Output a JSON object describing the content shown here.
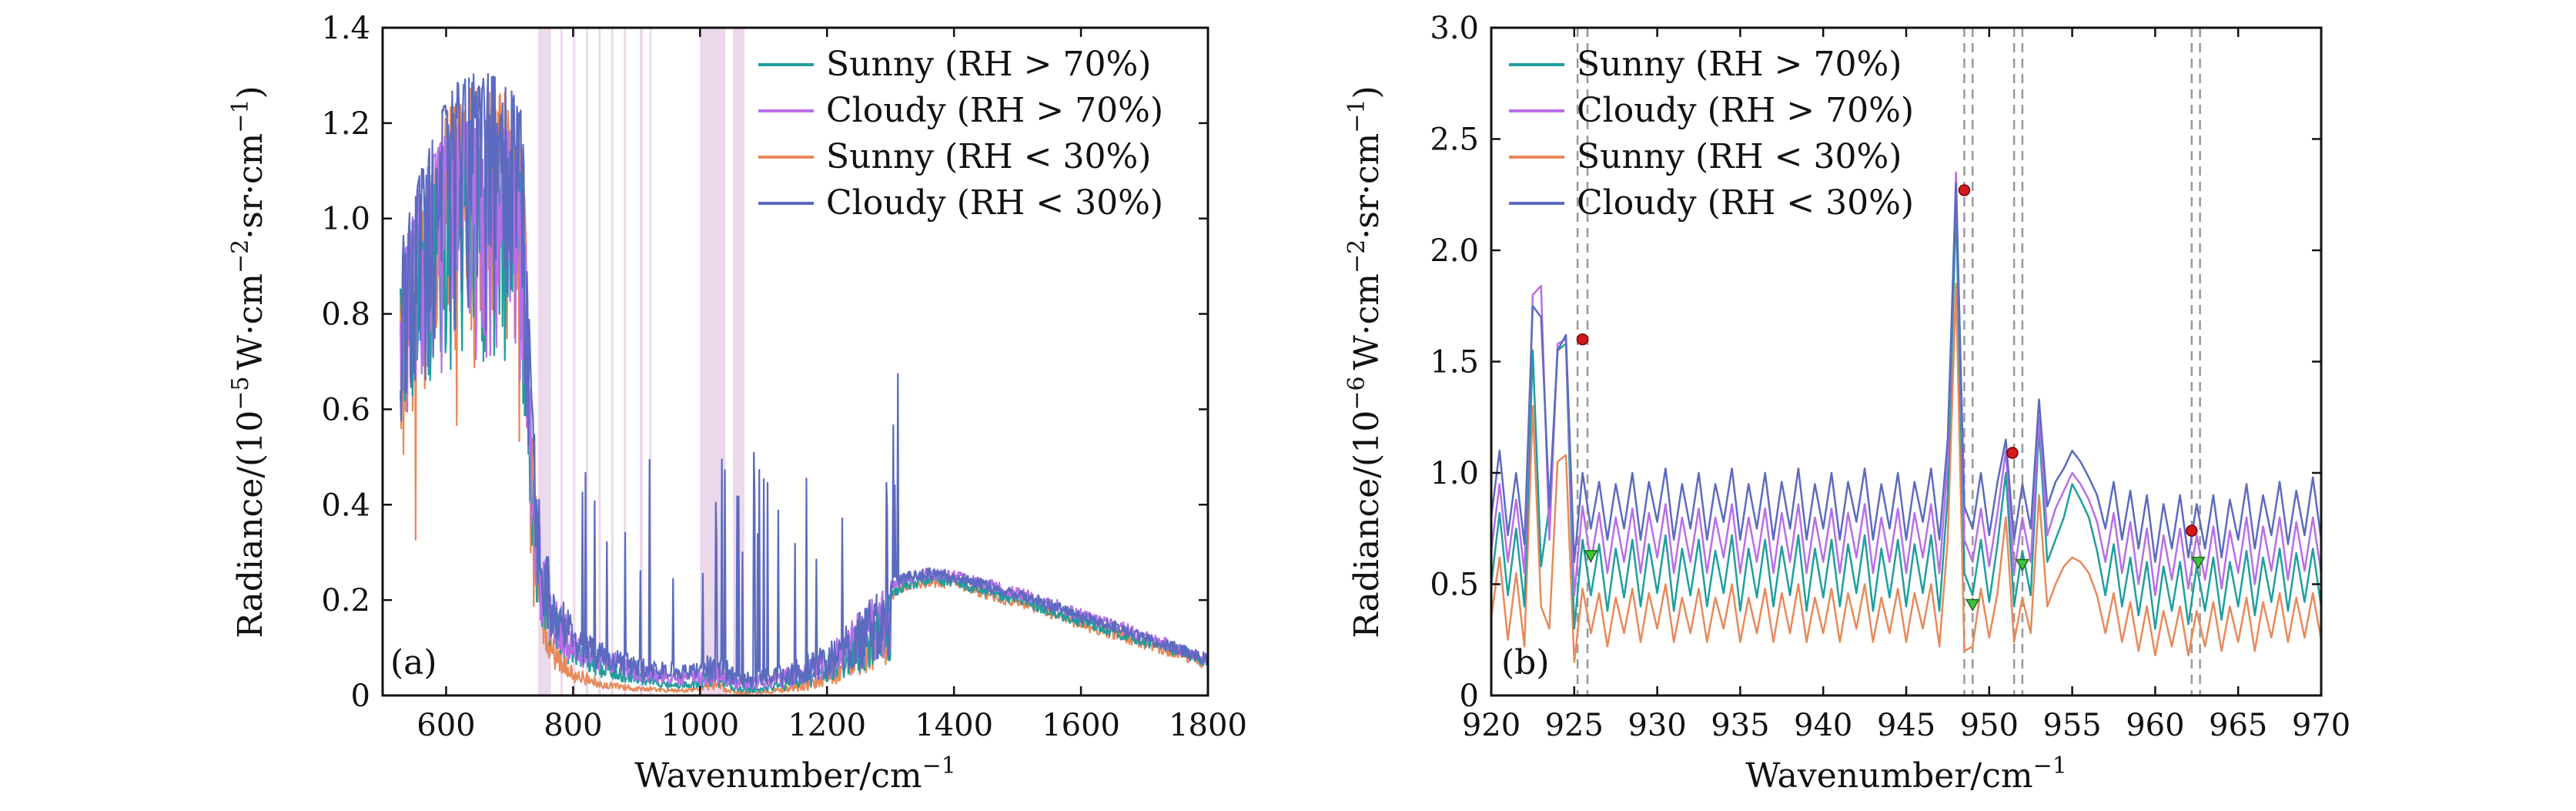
{
  "colors": {
    "sunny_wet": "#1f9e9e",
    "cloudy_wet": "#b86ee8",
    "sunny_dry": "#e8895a",
    "cloudy_dry": "#5b6bbf",
    "band": "#e6cce6",
    "peak_marker": "#d11a1a",
    "trough_marker": "#3fc23f",
    "dashed_line": "#999999"
  },
  "chart_data": [
    {
      "type": "line",
      "panel_label": "(a)",
      "xlabel": "Wavenumber/cm",
      "xlabel_sup": "−1",
      "ylabel": "Radiance/(10",
      "ylabel_sup": "−5",
      "ylabel_units": "W·cm",
      "ylabel_units_sup": "−2",
      "ylabel_units_tail": "·sr·cm",
      "ylabel_units_tail_sup": "−1",
      "ylabel_close": ")",
      "xlim": [
        500,
        1800
      ],
      "ylim": [
        0,
        1.4
      ],
      "x_ticks": [
        600,
        800,
        1000,
        1200,
        1400,
        1600,
        1800
      ],
      "x_tick_labels": [
        "600",
        "800",
        "1000",
        "1200",
        "1400",
        "1600",
        "1800"
      ],
      "y_ticks": [
        0,
        0.2,
        0.4,
        0.6,
        0.8,
        1.0,
        1.2,
        1.4
      ],
      "y_tick_labels": [
        "0",
        "0.2",
        "0.4",
        "0.6",
        "0.8",
        "1.0",
        "1.2",
        "1.4"
      ],
      "legend": [
        "Sunny (RH > 70%)",
        "Cloudy (RH > 70%)",
        "Sunny (RH < 30%)",
        "Cloudy (RH < 30%)"
      ],
      "legend_position": "top-right",
      "shaded_bands": [
        [
          745,
          765
        ],
        [
          780,
          783
        ],
        [
          800,
          803
        ],
        [
          820,
          823
        ],
        [
          840,
          843
        ],
        [
          860,
          863
        ],
        [
          880,
          883
        ],
        [
          905,
          910
        ],
        [
          920,
          923
        ],
        [
          1000,
          1040
        ],
        [
          1052,
          1070
        ]
      ],
      "envelope": {
        "x": [
          530,
          560,
          600,
          620,
          650,
          680,
          700,
          720,
          735,
          750,
          770,
          800,
          850,
          900,
          950,
          980,
          1000,
          1020,
          1040,
          1060,
          1080,
          1120,
          1160,
          1200,
          1240,
          1280,
          1320,
          1360,
          1400,
          1450,
          1500,
          1550,
          1600,
          1650,
          1700,
          1750,
          1800
        ],
        "sunny_wet": [
          0.9,
          1.05,
          1.15,
          1.17,
          1.18,
          1.17,
          1.15,
          1.1,
          0.55,
          0.3,
          0.2,
          0.12,
          0.08,
          0.05,
          0.03,
          0.03,
          0.04,
          0.06,
          0.04,
          0.02,
          0.02,
          0.03,
          0.05,
          0.08,
          0.14,
          0.2,
          0.23,
          0.245,
          0.24,
          0.22,
          0.2,
          0.18,
          0.155,
          0.135,
          0.115,
          0.095,
          0.07
        ],
        "cloudy_wet": [
          0.92,
          1.08,
          1.18,
          1.2,
          1.21,
          1.2,
          1.18,
          1.12,
          0.58,
          0.33,
          0.22,
          0.14,
          0.1,
          0.07,
          0.05,
          0.05,
          0.06,
          0.08,
          0.06,
          0.04,
          0.04,
          0.05,
          0.07,
          0.1,
          0.16,
          0.22,
          0.245,
          0.255,
          0.25,
          0.235,
          0.215,
          0.195,
          0.17,
          0.15,
          0.125,
          0.1,
          0.075
        ],
        "sunny_dry": [
          0.85,
          1.0,
          1.22,
          1.26,
          1.28,
          1.27,
          1.26,
          1.2,
          0.55,
          0.25,
          0.12,
          0.06,
          0.03,
          0.02,
          0.015,
          0.015,
          0.02,
          0.04,
          0.02,
          0.01,
          0.01,
          0.015,
          0.03,
          0.06,
          0.12,
          0.19,
          0.225,
          0.24,
          0.235,
          0.215,
          0.195,
          0.175,
          0.15,
          0.13,
          0.11,
          0.09,
          0.065
        ],
        "cloudy_dry": [
          0.95,
          1.1,
          1.25,
          1.29,
          1.31,
          1.3,
          1.28,
          1.22,
          0.62,
          0.36,
          0.25,
          0.16,
          0.11,
          0.08,
          0.07,
          0.07,
          0.08,
          0.1,
          0.08,
          0.05,
          0.05,
          0.06,
          0.08,
          0.11,
          0.16,
          0.22,
          0.245,
          0.255,
          0.25,
          0.23,
          0.21,
          0.19,
          0.165,
          0.145,
          0.12,
          0.1,
          0.075
        ]
      }
    },
    {
      "type": "line",
      "panel_label": "(b)",
      "xlabel": "Wavenumber/cm",
      "xlabel_sup": "−1",
      "ylabel": "Radiance/(10",
      "ylabel_sup": "−6",
      "ylabel_units": "W·cm",
      "ylabel_units_sup": "−2",
      "ylabel_units_tail": "·sr·cm",
      "ylabel_units_tail_sup": "−1",
      "ylabel_close": ")",
      "xlim": [
        920,
        970
      ],
      "ylim": [
        0,
        3.0
      ],
      "x_ticks": [
        920,
        925,
        930,
        935,
        940,
        945,
        950,
        955,
        960,
        965,
        970
      ],
      "x_tick_labels": [
        "920",
        "925",
        "930",
        "935",
        "940",
        "945",
        "950",
        "955",
        "960",
        "965",
        "970"
      ],
      "y_ticks": [
        0,
        0.5,
        1.0,
        1.5,
        2.0,
        2.5,
        3.0
      ],
      "y_tick_labels": [
        "0",
        "0.5",
        "1.0",
        "1.5",
        "2.0",
        "2.5",
        "3.0"
      ],
      "legend": [
        "Sunny (RH > 70%)",
        "Cloudy (RH > 70%)",
        "Sunny (RH < 30%)",
        "Cloudy (RH < 30%)"
      ],
      "legend_position": "top-left",
      "dashed_lines": [
        925.2,
        925.8,
        948.5,
        949.0,
        951.5,
        952.0,
        962.2,
        962.7
      ],
      "peak_markers": [
        [
          925.5,
          1.6
        ],
        [
          948.5,
          2.27
        ],
        [
          951.4,
          1.09
        ],
        [
          962.2,
          0.74
        ]
      ],
      "trough_markers": [
        [
          926.0,
          0.63
        ],
        [
          949.0,
          0.41
        ],
        [
          952.0,
          0.59
        ],
        [
          962.6,
          0.6
        ]
      ],
      "step": 0.5,
      "x_start": 920,
      "series": [
        {
          "name": "Sunny (RH > 70%)",
          "key": "sunny_wet",
          "values": [
            0.5,
            0.82,
            0.45,
            0.75,
            0.4,
            1.55,
            0.58,
            0.85,
            1.55,
            1.58,
            0.3,
            0.7,
            0.45,
            0.68,
            0.38,
            0.66,
            0.44,
            0.7,
            0.4,
            0.68,
            0.46,
            0.72,
            0.38,
            0.66,
            0.45,
            0.7,
            0.4,
            0.65,
            0.46,
            0.72,
            0.38,
            0.66,
            0.44,
            0.7,
            0.4,
            0.67,
            0.45,
            0.72,
            0.38,
            0.66,
            0.44,
            0.7,
            0.4,
            0.68,
            0.46,
            0.72,
            0.38,
            0.66,
            0.44,
            0.7,
            0.4,
            0.68,
            0.46,
            0.72,
            0.38,
            0.9,
            2.2,
            0.55,
            0.45,
            0.7,
            0.42,
            0.68,
            1.0,
            0.4,
            0.65,
            0.45,
            1.2,
            0.6,
            0.7,
            0.8,
            0.95,
            0.88,
            0.8,
            0.65,
            0.45,
            0.68,
            0.4,
            0.62,
            0.36,
            0.6,
            0.3,
            0.58,
            0.38,
            0.6,
            0.32,
            0.58,
            0.38,
            0.62,
            0.34,
            0.6,
            0.4,
            0.65,
            0.36,
            0.62,
            0.42,
            0.66,
            0.38,
            0.64,
            0.42,
            0.66,
            0.4
          ]
        },
        {
          "name": "Cloudy (RH > 70%)",
          "key": "cloudy_wet",
          "values": [
            0.65,
            0.95,
            0.6,
            0.88,
            0.55,
            1.8,
            1.84,
            0.7,
            1.58,
            1.6,
            0.45,
            0.85,
            0.6,
            0.82,
            0.55,
            0.8,
            0.6,
            0.84,
            0.55,
            0.82,
            0.62,
            0.86,
            0.55,
            0.8,
            0.6,
            0.84,
            0.55,
            0.8,
            0.62,
            0.86,
            0.55,
            0.8,
            0.6,
            0.84,
            0.55,
            0.82,
            0.6,
            0.86,
            0.55,
            0.8,
            0.6,
            0.84,
            0.55,
            0.82,
            0.62,
            0.86,
            0.55,
            0.8,
            0.6,
            0.84,
            0.55,
            0.82,
            0.62,
            0.86,
            0.55,
            1.05,
            2.35,
            0.7,
            0.6,
            0.84,
            0.58,
            0.82,
            1.1,
            0.55,
            0.8,
            0.6,
            1.25,
            0.72,
            0.84,
            0.92,
            1.0,
            0.95,
            0.88,
            0.78,
            0.6,
            0.82,
            0.55,
            0.78,
            0.5,
            0.75,
            0.45,
            0.72,
            0.52,
            0.75,
            0.48,
            0.72,
            0.52,
            0.76,
            0.48,
            0.74,
            0.55,
            0.8,
            0.5,
            0.76,
            0.56,
            0.8,
            0.52,
            0.78,
            0.56,
            0.8,
            0.55
          ]
        },
        {
          "name": "Sunny (RH < 30%)",
          "key": "sunny_dry",
          "values": [
            0.35,
            0.62,
            0.25,
            0.55,
            0.22,
            1.3,
            0.4,
            0.3,
            1.05,
            1.08,
            0.15,
            0.48,
            0.28,
            0.46,
            0.22,
            0.44,
            0.28,
            0.48,
            0.24,
            0.46,
            0.3,
            0.5,
            0.24,
            0.44,
            0.28,
            0.48,
            0.24,
            0.44,
            0.3,
            0.5,
            0.24,
            0.44,
            0.28,
            0.48,
            0.24,
            0.46,
            0.28,
            0.5,
            0.24,
            0.44,
            0.28,
            0.48,
            0.24,
            0.46,
            0.3,
            0.5,
            0.24,
            0.44,
            0.28,
            0.48,
            0.24,
            0.46,
            0.3,
            0.5,
            0.22,
            0.7,
            1.85,
            0.2,
            0.22,
            0.48,
            0.26,
            0.46,
            0.8,
            0.24,
            0.44,
            0.28,
            0.9,
            0.4,
            0.5,
            0.58,
            0.62,
            0.6,
            0.55,
            0.45,
            0.28,
            0.46,
            0.24,
            0.42,
            0.2,
            0.4,
            0.18,
            0.38,
            0.22,
            0.4,
            0.18,
            0.38,
            0.22,
            0.42,
            0.2,
            0.4,
            0.24,
            0.44,
            0.2,
            0.42,
            0.26,
            0.46,
            0.24,
            0.44,
            0.26,
            0.46,
            0.25
          ]
        },
        {
          "name": "Cloudy (RH < 30%)",
          "key": "cloudy_dry",
          "values": [
            0.8,
            1.1,
            0.72,
            1.0,
            0.68,
            1.75,
            1.7,
            0.85,
            1.55,
            1.62,
            0.6,
            1.0,
            0.75,
            0.96,
            0.7,
            0.95,
            0.75,
            1.0,
            0.7,
            0.96,
            0.78,
            1.02,
            0.7,
            0.95,
            0.75,
            1.0,
            0.7,
            0.95,
            0.78,
            1.02,
            0.7,
            0.95,
            0.75,
            1.0,
            0.7,
            0.96,
            0.75,
            1.02,
            0.7,
            0.95,
            0.75,
            1.0,
            0.7,
            0.96,
            0.78,
            1.02,
            0.7,
            0.95,
            0.75,
            1.0,
            0.7,
            0.96,
            0.78,
            1.02,
            0.7,
            1.15,
            2.3,
            0.85,
            0.75,
            1.0,
            0.72,
            0.96,
            1.15,
            0.7,
            0.95,
            0.75,
            1.33,
            0.85,
            0.96,
            1.02,
            1.1,
            1.05,
            0.98,
            0.9,
            0.75,
            0.96,
            0.7,
            0.92,
            0.66,
            0.9,
            0.6,
            0.86,
            0.66,
            0.9,
            0.62,
            0.86,
            0.66,
            0.9,
            0.62,
            0.88,
            0.7,
            0.95,
            0.66,
            0.9,
            0.72,
            0.96,
            0.68,
            0.92,
            0.72,
            0.98,
            0.7
          ]
        }
      ]
    }
  ]
}
